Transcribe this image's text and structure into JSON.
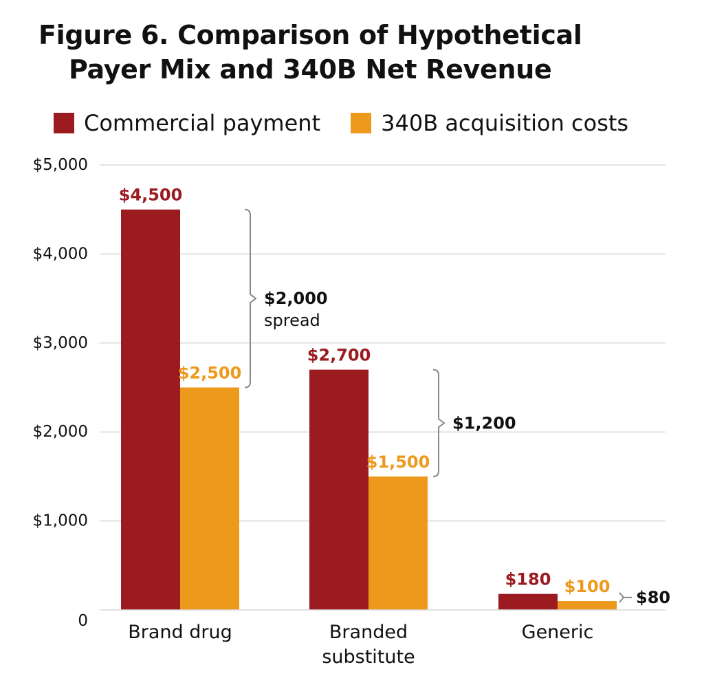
{
  "colors": {
    "commercial": "#9b1b20",
    "acquisition": "#ed9a1c",
    "grid": "#d8d8d8",
    "bracket": "#888888",
    "text": "#111111"
  },
  "chart_data": {
    "type": "bar",
    "title_line1": "Figure 6. Comparison of Hypothetical",
    "title_line2": "Payer Mix and 340B Net Revenue",
    "xlabel": "",
    "ylabel": "",
    "ylim": [
      0,
      5000
    ],
    "yticks": [
      0,
      1000,
      2000,
      3000,
      4000,
      5000
    ],
    "ytick_labels": [
      "0",
      "$1,000",
      "$2,000",
      "$3,000",
      "$4,000",
      "$5,000"
    ],
    "categories": [
      [
        "Brand drug"
      ],
      [
        "Branded",
        "substitute"
      ],
      [
        "Generic"
      ]
    ],
    "series": [
      {
        "name": "Commercial payment",
        "color_key": "commercial",
        "values": [
          4500,
          2700,
          180
        ],
        "labels": [
          "$4,500",
          "$2,700",
          "$180"
        ]
      },
      {
        "name": "340B acquisition costs",
        "color_key": "acquisition",
        "values": [
          2500,
          1500,
          100
        ],
        "labels": [
          "$2,500",
          "$1,500",
          "$100"
        ]
      }
    ],
    "spreads": [
      {
        "value": 2000,
        "label": "$2,000",
        "sublabel": "spread"
      },
      {
        "value": 1200,
        "label": "$1,200",
        "sublabel": ""
      },
      {
        "value": 80,
        "label": "$80",
        "sublabel": ""
      }
    ]
  }
}
